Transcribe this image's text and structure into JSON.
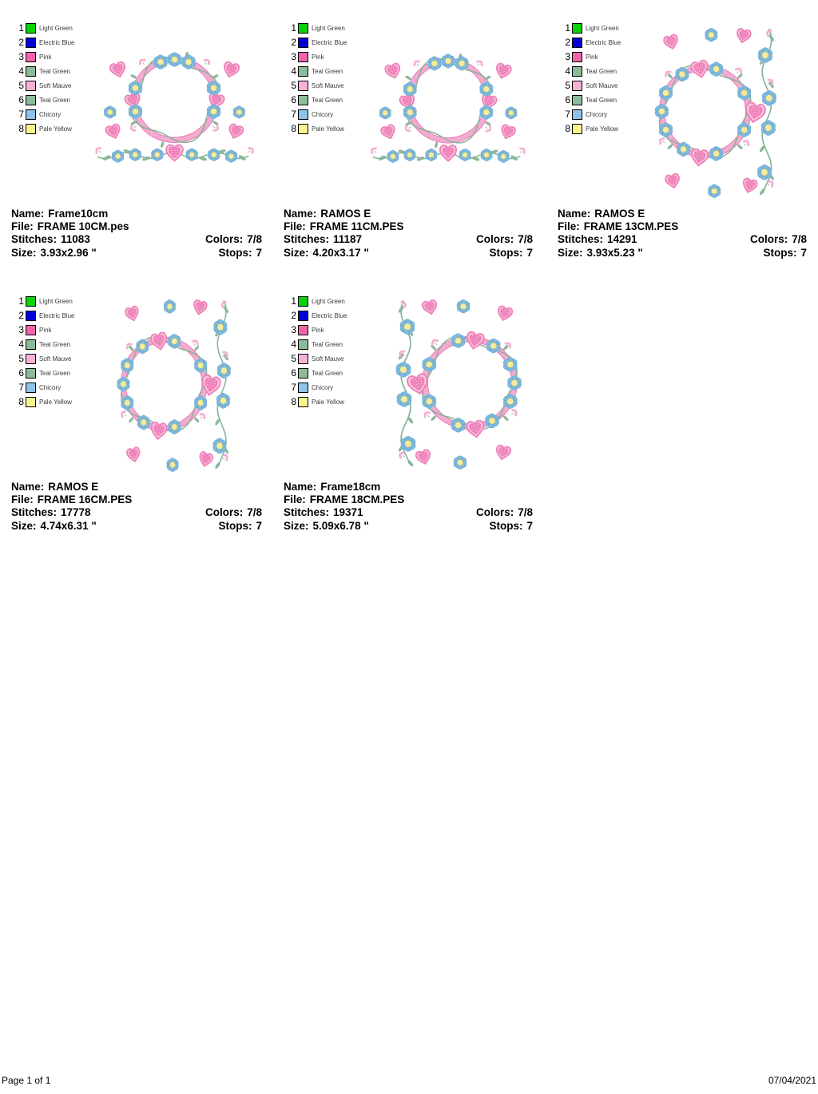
{
  "page": {
    "footer": {
      "left": "Page 1 of 1",
      "right": "07/04/2021"
    }
  },
  "field_labels": {
    "name": "Name:",
    "file": "File:",
    "stitches": "Stitches:",
    "colors": "Colors:",
    "size": "Size:",
    "stops": "Stops:"
  },
  "legend": {
    "threads": [
      {
        "num": "1",
        "name": "Light Green",
        "color": "#09d209"
      },
      {
        "num": "2",
        "name": "Electric Blue",
        "color": "#0202d6"
      },
      {
        "num": "3",
        "name": "Pink",
        "color": "#f263ac"
      },
      {
        "num": "4",
        "name": "Teal Green",
        "color": "#8abc9a"
      },
      {
        "num": "5",
        "name": "Soft Mauve",
        "color": "#f9b0d8"
      },
      {
        "num": "6",
        "name": "Teal Green",
        "color": "#8abc9a"
      },
      {
        "num": "7",
        "name": "Chicory",
        "color": "#8ec2e8"
      },
      {
        "num": "8",
        "name": "Pale Yellow",
        "color": "#fbf58b"
      }
    ]
  },
  "designs": [
    {
      "name": "Frame10cm",
      "file": "FRAME 10CM.pes",
      "stitches": "11083",
      "colors": "7/8",
      "size": "3.93x2.96 \"",
      "stops": "7",
      "variant": "wide"
    },
    {
      "name": "RAMOS E",
      "file": "FRAME 11CM.PES",
      "stitches": "11187",
      "colors": "7/8",
      "size": "4.20x3.17 \"",
      "stops": "7",
      "variant": "wide"
    },
    {
      "name": "RAMOS E",
      "file": "FRAME 13CM.PES",
      "stitches": "14291",
      "colors": "7/8",
      "size": "3.93x5.23 \"",
      "stops": "7",
      "variant": "tall-right"
    },
    {
      "name": "RAMOS E",
      "file": "FRAME 16CM.PES",
      "stitches": "17778",
      "colors": "7/8",
      "size": "4.74x6.31 \"",
      "stops": "7",
      "variant": "tall-right"
    },
    {
      "name": "Frame18cm",
      "file": "FRAME 18CM.PES",
      "stitches": "19371",
      "colors": "7/8",
      "size": "5.09x6.78 \"",
      "stops": "7",
      "variant": "tall-left"
    }
  ],
  "design_colors": {
    "ring": "#f3abd1",
    "ring_edge": "#e674b2",
    "flower_back": "#bcdcee",
    "flower_petal": "#7db9de",
    "flower_petal_edge": "#5a9aca",
    "flower_center": "#f2eda1",
    "flower_center_edge": "#c9bd60",
    "heart_border": "#f9c7de",
    "heart_edge": "#ee82ba",
    "heart_fill": "#ee7eb7",
    "heart_dot": "#fcd9ea",
    "vine": "#85b495",
    "leaf": "#8cba9c",
    "leaf_edge": "#6fa081",
    "sprig": "#f6b5d8",
    "sprig_edge": "#ee8ac0"
  }
}
